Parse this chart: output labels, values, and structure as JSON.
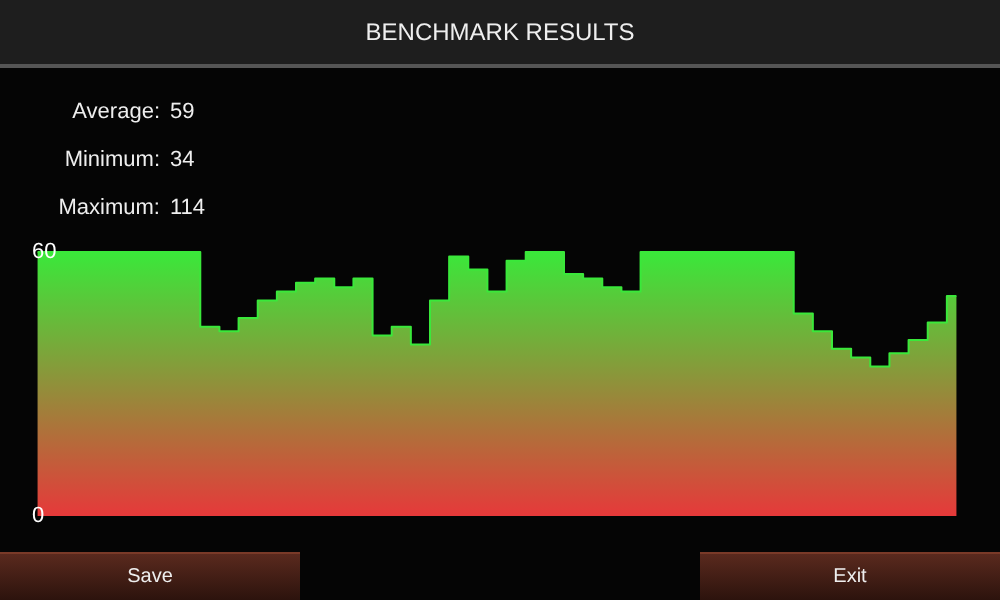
{
  "chart_data": {
    "type": "step",
    "title": "BENCHMARK RESULTS",
    "annotations": [
      "Average: 59",
      "Minimum: 34",
      "Maximum: 114",
      "Save",
      "Exit"
    ],
    "categories": [
      null,
      null,
      null,
      null,
      null,
      null,
      null,
      null,
      null,
      null,
      null,
      null,
      null,
      null,
      null,
      null,
      null,
      null,
      null,
      null,
      null,
      null,
      null,
      null,
      null,
      null,
      null,
      null,
      null,
      null,
      null,
      null,
      null,
      null,
      null,
      null,
      null,
      null,
      null,
      null,
      null,
      null,
      null,
      null,
      null,
      null,
      null,
      null,
      null
    ],
    "series": [
      {
        "color": "#3ae83a",
        "values": [
          60,
          60,
          60,
          60,
          60,
          60,
          60,
          60,
          60,
          43,
          42,
          45,
          49,
          51,
          53,
          54,
          52,
          54,
          41,
          43,
          39,
          49,
          59,
          56,
          51,
          58,
          60,
          60,
          55,
          54,
          52,
          51,
          60,
          60,
          60,
          60,
          60,
          60,
          60,
          60,
          46,
          42,
          38,
          36,
          34,
          37,
          40,
          44,
          50
        ]
      }
    ],
    "ylim": [
      0,
      60
    ],
    "yticks": [
      0,
      60
    ],
    "tick_labels": "y",
    "grid": false
  }
}
